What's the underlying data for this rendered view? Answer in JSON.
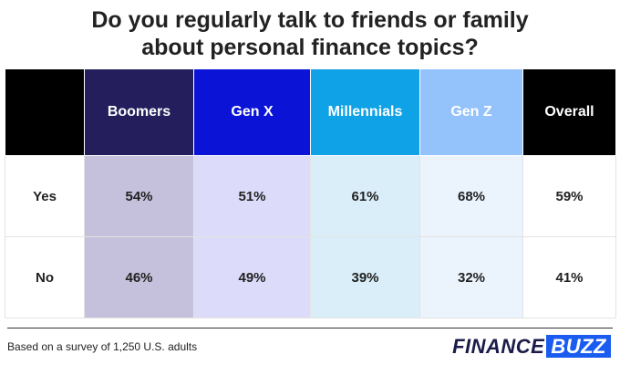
{
  "header": {
    "title": [
      "Do you regularly talk to friends or family",
      "about personal finance topics?"
    ]
  },
  "table": {
    "columns": [
      "Boomers",
      "Gen X",
      "Millennials",
      "Gen Z",
      "Overall"
    ],
    "rows": [
      {
        "label": "Yes",
        "cells": [
          "54%",
          "51%",
          "61%",
          "68%",
          "59%"
        ]
      },
      {
        "label": "No",
        "cells": [
          "46%",
          "49%",
          "39%",
          "32%",
          "41%"
        ]
      }
    ]
  },
  "footer": {
    "note": "Based on a survey of 1,250 U.S. adults",
    "logo": [
      "FINANCE",
      "BUZZ"
    ]
  }
}
